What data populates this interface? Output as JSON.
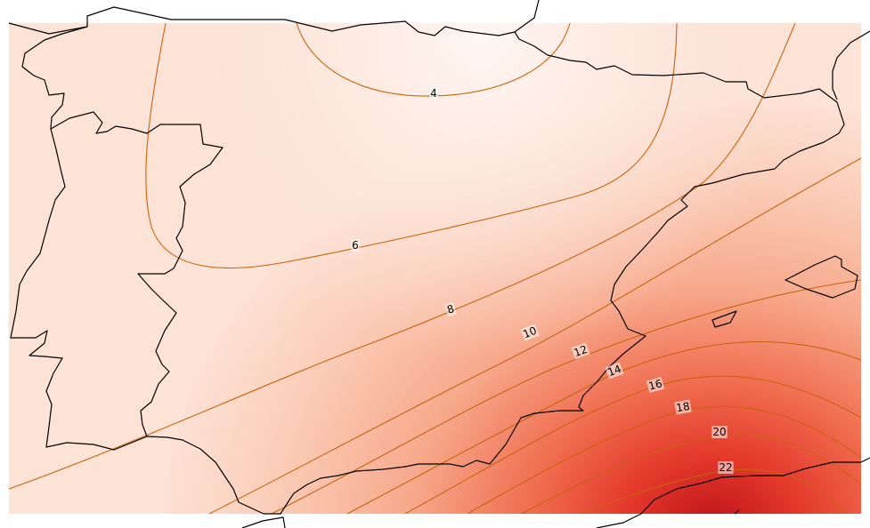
{
  "map": {
    "field_colors": {
      "low": "#fff6f2",
      "mid": "#fbcdb8",
      "high": "#f06a4d",
      "peak": "#c0141a"
    },
    "contour_color": "#c8640a",
    "coastline_color": "#000000",
    "contour_labels": [
      "4",
      "6",
      "8",
      "10",
      "12",
      "14",
      "16",
      "18",
      "20",
      "22"
    ]
  }
}
